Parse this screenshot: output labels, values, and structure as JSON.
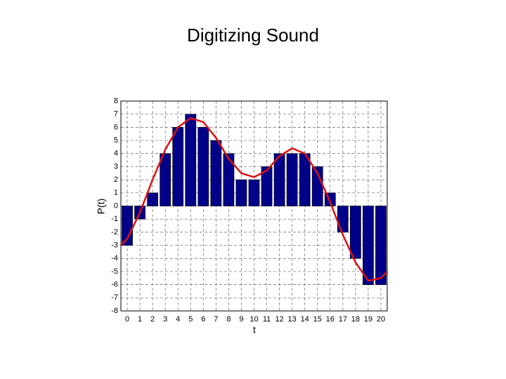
{
  "chart_data": {
    "type": "bar",
    "title": "Digitizing Sound",
    "xlabel": "t",
    "ylabel": "P(t)",
    "x": [
      0,
      1,
      2,
      3,
      4,
      5,
      6,
      7,
      8,
      9,
      10,
      11,
      12,
      13,
      14,
      15,
      16,
      17,
      18,
      19,
      20
    ],
    "values": [
      -3,
      -1,
      1,
      4,
      6,
      7,
      6,
      5,
      4,
      2,
      2,
      3,
      4,
      4,
      4,
      3,
      1,
      -2,
      -4,
      -6,
      -6
    ],
    "color": "#000088",
    "curve": {
      "type": "line",
      "color": "#dd1111",
      "x": [
        -0.5,
        0,
        1,
        2,
        3,
        4,
        5,
        6,
        7,
        8,
        9,
        10,
        11,
        12,
        13,
        14,
        15,
        16,
        17,
        18,
        19,
        20,
        20.5
      ],
      "values": [
        -3,
        -2.5,
        -0.5,
        2,
        4.3,
        6,
        6.7,
        6.4,
        5.2,
        3.6,
        2.5,
        2.2,
        2.7,
        3.8,
        4.4,
        4,
        2.5,
        0.3,
        -2.2,
        -4.3,
        -5.7,
        -5.5,
        -5
      ]
    },
    "xlim": [
      -0.5,
      20.5
    ],
    "ylim": [
      -8,
      8
    ],
    "xticks": [
      0,
      1,
      2,
      3,
      4,
      5,
      6,
      7,
      8,
      9,
      10,
      11,
      12,
      13,
      14,
      15,
      16,
      17,
      18,
      19,
      20
    ],
    "yticks": [
      -8,
      -7,
      -6,
      -5,
      -4,
      -3,
      -2,
      -1,
      0,
      1,
      2,
      3,
      4,
      5,
      6,
      7,
      8
    ],
    "grid": true
  }
}
